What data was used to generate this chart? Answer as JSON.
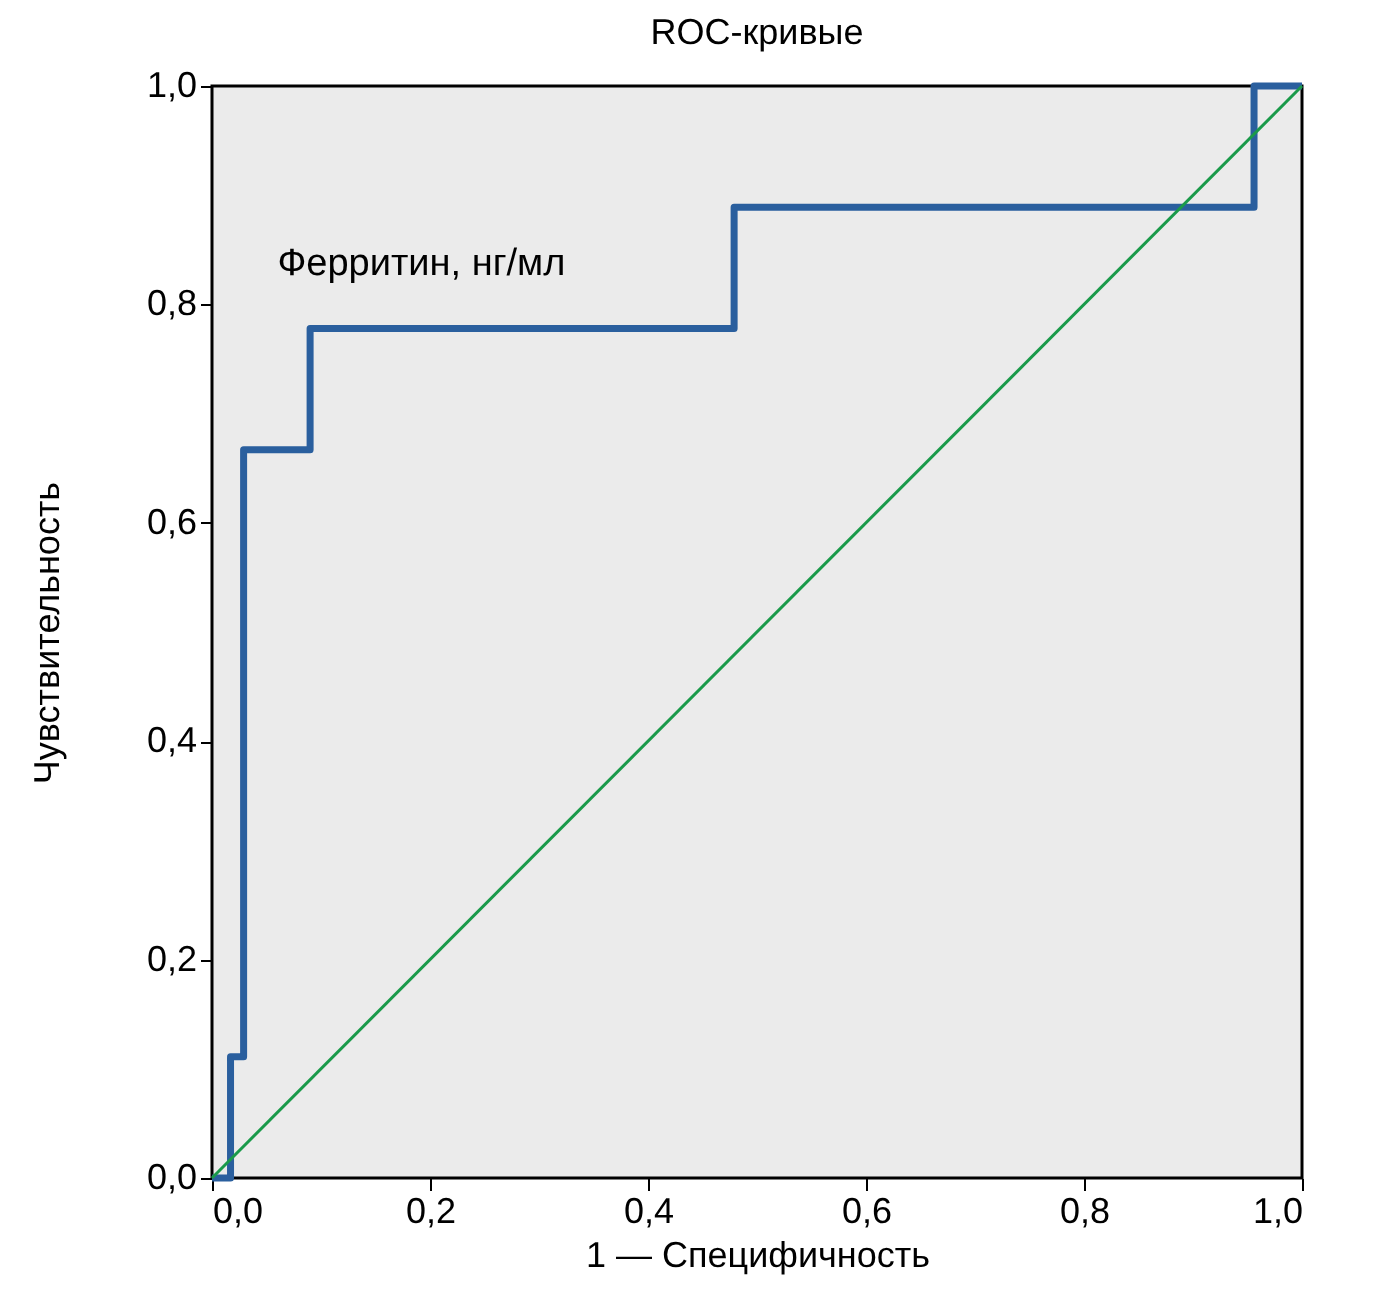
{
  "chart_data": {
    "type": "step",
    "title": "ROC-кривые",
    "xlabel": "1 — Специфичность",
    "ylabel": "Чувствительность",
    "xlim": [
      0,
      1
    ],
    "ylim": [
      0,
      1
    ],
    "xticks": [
      {
        "value": 0,
        "label": "0,0"
      },
      {
        "value": 0.2,
        "label": "0,2"
      },
      {
        "value": 0.4,
        "label": "0,4"
      },
      {
        "value": 0.6,
        "label": "0,6"
      },
      {
        "value": 0.8,
        "label": "0,8"
      },
      {
        "value": 1,
        "label": "1,0"
      }
    ],
    "yticks": [
      {
        "value": 0,
        "label": "0,0"
      },
      {
        "value": 0.2,
        "label": "0,2"
      },
      {
        "value": 0.4,
        "label": "0,4"
      },
      {
        "value": 0.6,
        "label": "0,6"
      },
      {
        "value": 0.8,
        "label": "0,8"
      },
      {
        "value": 1,
        "label": "1,0"
      }
    ],
    "grid": false,
    "legend": false,
    "series": [
      {
        "name": "Ферритин, нг/мл",
        "type": "step",
        "color": "#2a5f9e",
        "x": [
          0,
          0.017,
          0.029,
          0.09,
          0.479,
          0.956,
          1
        ],
        "values": [
          0,
          0.111,
          0.667,
          0.778,
          0.889,
          1,
          1
        ]
      },
      {
        "type": "line",
        "color": "#1a9a4a",
        "x": [
          0,
          1
        ],
        "values": [
          0,
          1
        ]
      }
    ]
  }
}
